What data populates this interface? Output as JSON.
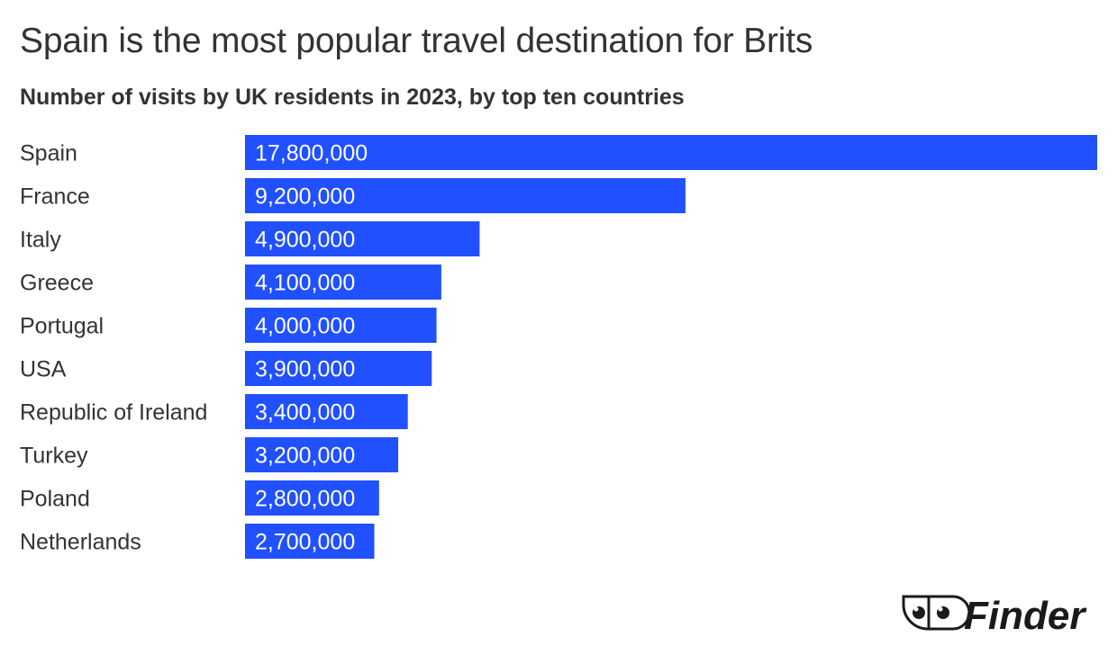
{
  "title": "Spain is the most popular travel destination for Brits",
  "subtitle": "Number of visits by UK residents in 2023, by top ten countries",
  "brand": {
    "logo_text": "Finder",
    "icon": "finder-eyes-logo"
  },
  "colors": {
    "bar": "#2050ff",
    "text": "#333333",
    "bar_label": "#ffffff"
  },
  "chart_data": {
    "type": "bar",
    "orientation": "horizontal",
    "title": "Spain is the most popular travel destination for Brits",
    "subtitle": "Number of visits by UK residents in 2023, by top ten countries",
    "categories": [
      "Spain",
      "France",
      "Italy",
      "Greece",
      "Portugal",
      "USA",
      "Republic of Ireland",
      "Turkey",
      "Poland",
      "Netherlands"
    ],
    "values": [
      17800000,
      9200000,
      4900000,
      4100000,
      4000000,
      3900000,
      3400000,
      3200000,
      2800000,
      2700000
    ],
    "value_labels": [
      "17,800,000",
      "9,200,000",
      "4,900,000",
      "4,100,000",
      "4,000,000",
      "3,900,000",
      "3,400,000",
      "3,200,000",
      "2,800,000",
      "2,700,000"
    ],
    "xlim": [
      0,
      17800000
    ],
    "grid": false,
    "legend": "none"
  }
}
